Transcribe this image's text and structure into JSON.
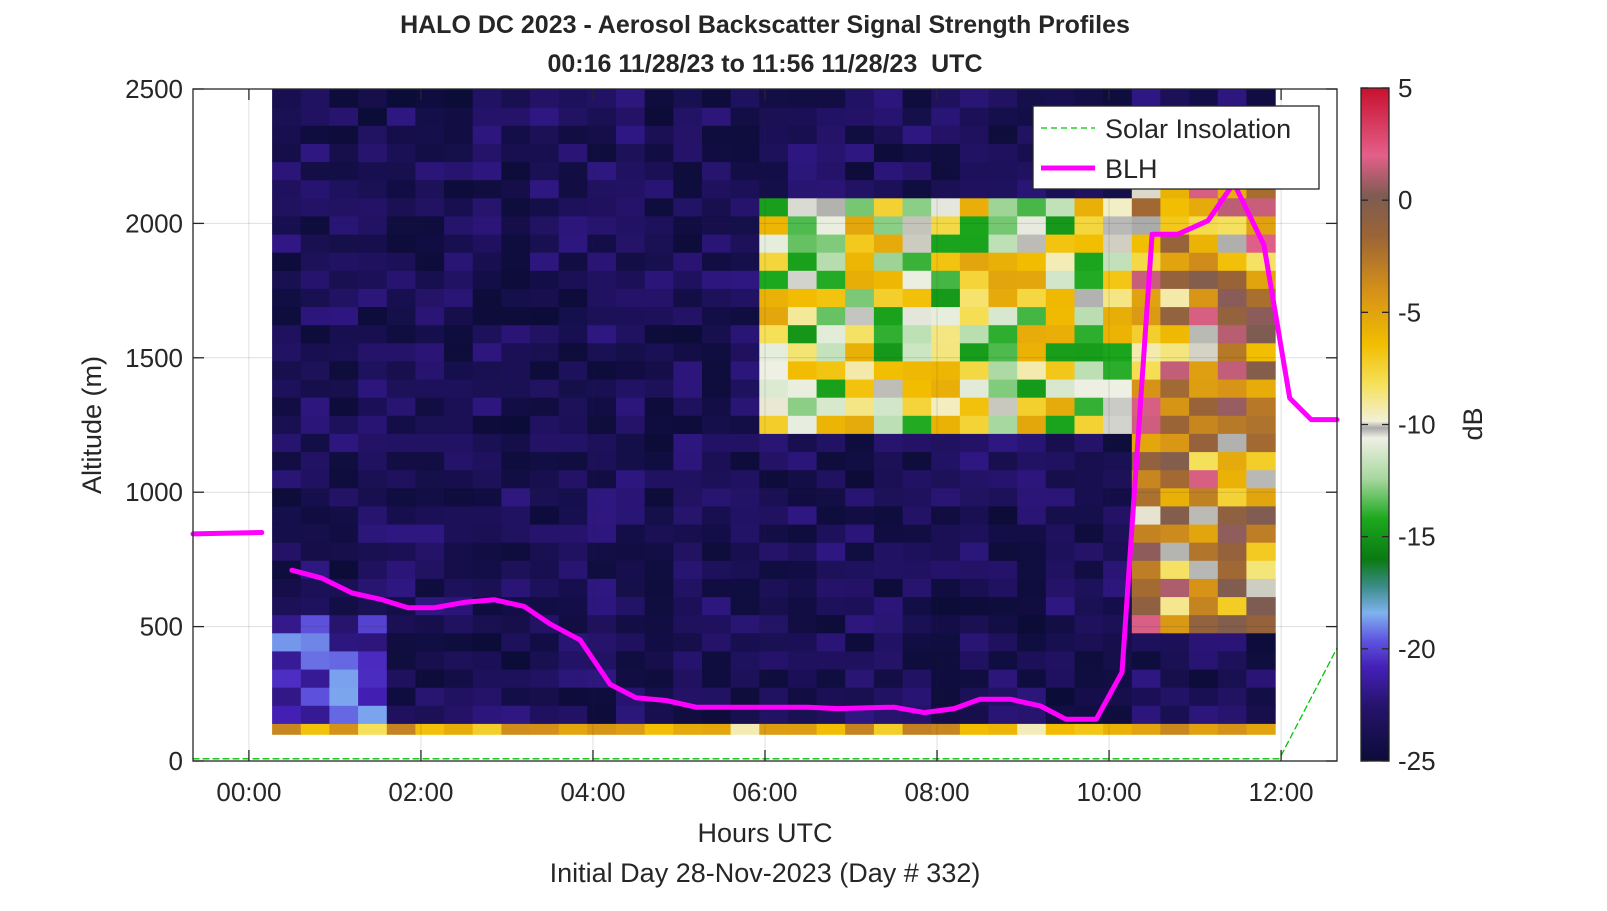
{
  "chart_data": {
    "type": "heatmap",
    "title": "HALO DC 2023 - Aerosol Backscatter Signal Strength Profiles",
    "subtitle": "00:16 11/28/23 to 11:56 11/28/23  UTC",
    "xlabel": "Hours UTC",
    "xlabel2": "Initial Day 28-Nov-2023 (Day # 332)",
    "ylabel": "Altitude (m)",
    "colorbar_label": "dB",
    "xlim": [
      -0.65,
      12.65
    ],
    "ylim": [
      0,
      2500
    ],
    "x_ticks": [
      0,
      2,
      4,
      6,
      8,
      10,
      12
    ],
    "x_tick_labels": [
      "00:00",
      "02:00",
      "04:00",
      "06:00",
      "08:00",
      "10:00",
      "12:00"
    ],
    "y_ticks": [
      0,
      500,
      1000,
      1500,
      2000,
      2500
    ],
    "y_tick_labels": [
      "0",
      "500",
      "1000",
      "1500",
      "2000",
      "2500"
    ],
    "clim": [
      -25,
      5
    ],
    "c_ticks": [
      -25,
      -20,
      -15,
      -10,
      -5,
      0,
      5
    ],
    "c_tick_labels": [
      "-25",
      "-20",
      "-15",
      "-10",
      "-5",
      "0",
      "5"
    ],
    "grid": true,
    "legend_position": "top-right",
    "legend": [
      "Solar Insolation",
      "BLH"
    ],
    "heatmap_extent": {
      "x": [
        0.27,
        11.93
      ],
      "y": [
        100,
        2500
      ]
    },
    "heatmap_columns": 35,
    "heatmap_rows": 36,
    "heatmap_note_values_in_dB": true,
    "heatmap_regions": [
      {
        "name": "background",
        "value": -23.5
      },
      {
        "name": "near_surface_band",
        "x": [
          0.27,
          11.93
        ],
        "y": [
          100,
          140
        ],
        "value": -6
      },
      {
        "name": "low_layer_0_2h",
        "x": [
          0.27,
          1.5
        ],
        "y": [
          140,
          540
        ],
        "value": -20.5
      },
      {
        "name": "midlevel_plume_6_10h",
        "x": [
          6.0,
          10.3
        ],
        "y": [
          1250,
          2100
        ],
        "value": -10
      },
      {
        "name": "late_plume_10_12h",
        "x": [
          10.3,
          11.93
        ],
        "y": [
          450,
          2150
        ],
        "value": -4
      }
    ],
    "series": [
      {
        "name": "BLH",
        "color": "#ff00ff",
        "segments": [
          {
            "x": [
              -0.65,
              0.15
            ],
            "y": [
              845,
              850
            ]
          },
          {
            "x": [
              0.5,
              0.85,
              1.2,
              1.55,
              1.85,
              2.15,
              2.5,
              2.85,
              3.2,
              3.5,
              3.85,
              4.2,
              4.5,
              4.85,
              5.2,
              5.5,
              5.85,
              6.2,
              6.5,
              6.85,
              7.2,
              7.5,
              7.85,
              8.2,
              8.5,
              8.85,
              9.2,
              9.5,
              9.85,
              10.15,
              10.5,
              10.8,
              11.15,
              11.45,
              11.8,
              12.1,
              12.35,
              12.65
            ],
            "y": [
              710,
              680,
              625,
              600,
              570,
              570,
              590,
              600,
              575,
              510,
              450,
              285,
              235,
              225,
              200,
              200,
              200,
              200,
              200,
              195,
              198,
              200,
              180,
              195,
              230,
              230,
              205,
              155,
              155,
              330,
              1960,
              1960,
              2010,
              2150,
              1920,
              1350,
              1270,
              1270
            ]
          }
        ]
      },
      {
        "name": "Solar Insolation",
        "color": "#00c800",
        "style": "dashed",
        "segments": [
          {
            "x": [
              -0.65,
              11.98,
              12.65
            ],
            "y": [
              8,
              8,
              420
            ]
          }
        ]
      }
    ]
  }
}
